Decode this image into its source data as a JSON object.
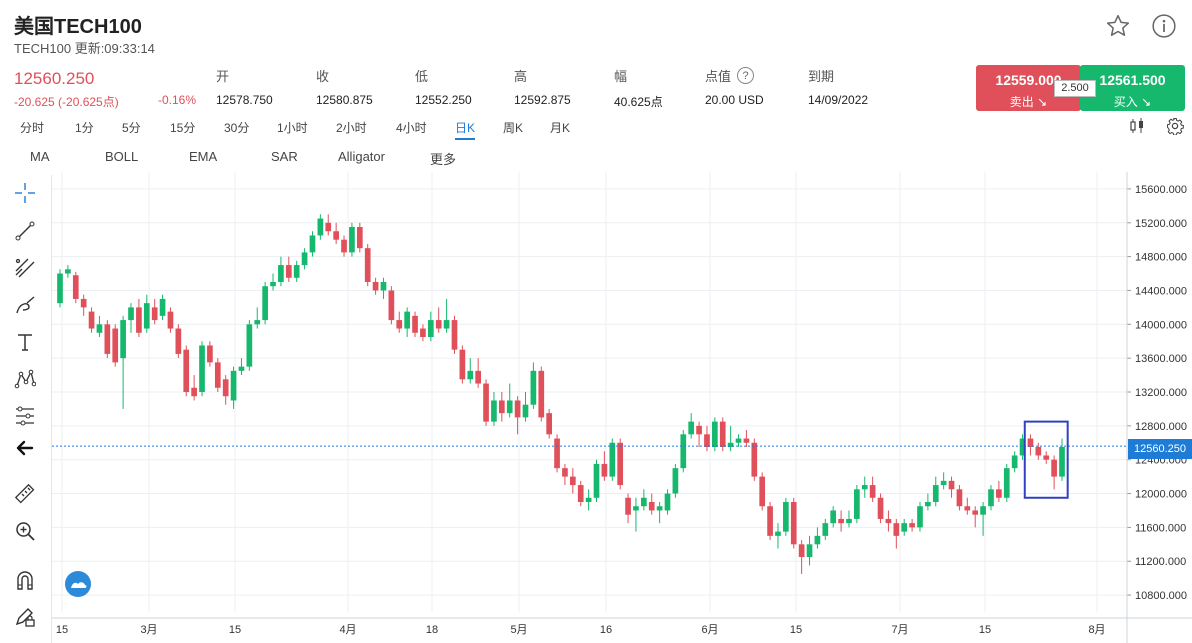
{
  "header": {
    "title": "美国TECH100",
    "subtitle": "TECH100 更新:09:33:14",
    "icons": [
      "star-icon",
      "info-icon"
    ]
  },
  "quote": {
    "price": "12560.250",
    "change": "-20.625 (-20.625点)",
    "change_pct": "-0.16%",
    "stats": [
      {
        "label": "开",
        "value": "12578.750"
      },
      {
        "label": "收",
        "value": "12580.875"
      },
      {
        "label": "低",
        "value": "12552.250"
      },
      {
        "label": "高",
        "value": "12592.875"
      },
      {
        "label": "幅",
        "value": "40.625点"
      },
      {
        "label": "点值",
        "value": "20.00 USD",
        "help": "?"
      },
      {
        "label": "到期",
        "value": "14/09/2022"
      }
    ],
    "sell": {
      "price": "12559.000",
      "label": "卖出"
    },
    "buy": {
      "price": "12561.500",
      "label": "买入"
    },
    "spread": "2.500",
    "colors": {
      "down": "#e0505a",
      "up": "#16b86e",
      "accent": "#1e7bd6"
    }
  },
  "timeframes": [
    "分时",
    "1分",
    "5分",
    "15分",
    "30分",
    "1小时",
    "2小时",
    "4小时",
    "日K",
    "周K",
    "月K"
  ],
  "active_timeframe": "日K",
  "indicators": [
    "MA",
    "BOLL",
    "EMA",
    "SAR",
    "Alligator",
    "更多"
  ],
  "tools": [
    "crosshair-icon",
    "trend-line-icon",
    "parallel-channel-icon",
    "brush-icon",
    "text-icon",
    "pattern-icon",
    "fib-icon",
    "back-arrow-icon",
    "ruler-icon",
    "zoom-icon",
    "magnet-icon",
    "lock-pencil-icon"
  ],
  "chart_data": {
    "type": "candlestick",
    "current_price": 12560.25,
    "current_price_label": "12560.250",
    "ylim": [
      10600,
      15800
    ],
    "y_ticks": [
      "15600.000",
      "15200.000",
      "14800.000",
      "14400.000",
      "14000.000",
      "13600.000",
      "13200.000",
      "12800.000",
      "12400.000",
      "12000.000",
      "11600.000",
      "11200.000",
      "10800.000"
    ],
    "x_labels": [
      "15",
      "3月",
      "15",
      "4月",
      "18",
      "5月",
      "16",
      "6月",
      "15",
      "7月",
      "15",
      "8月"
    ],
    "grid": true,
    "candles": [
      [
        14250,
        14600,
        14650,
        14200
      ],
      [
        14600,
        14650,
        14700,
        14550
      ],
      [
        14580,
        14300,
        14620,
        14250
      ],
      [
        14300,
        14200,
        14350,
        14100
      ],
      [
        14150,
        13950,
        14200,
        13900
      ],
      [
        13900,
        14000,
        14100,
        13850
      ],
      [
        14000,
        13650,
        14050,
        13600
      ],
      [
        13950,
        13550,
        14000,
        13500
      ],
      [
        13600,
        14050,
        14100,
        13000
      ],
      [
        14050,
        14200,
        14250,
        13900
      ],
      [
        14200,
        13900,
        14300,
        13850
      ],
      [
        13950,
        14250,
        14350,
        13900
      ],
      [
        14200,
        14050,
        14300,
        14000
      ],
      [
        14100,
        14300,
        14350,
        14050
      ],
      [
        14150,
        13950,
        14200,
        13900
      ],
      [
        13950,
        13650,
        14000,
        13600
      ],
      [
        13700,
        13200,
        13750,
        13150
      ],
      [
        13250,
        13150,
        13400,
        13100
      ],
      [
        13200,
        13750,
        13800,
        13150
      ],
      [
        13750,
        13550,
        13800,
        13500
      ],
      [
        13550,
        13250,
        13600,
        13200
      ],
      [
        13350,
        13150,
        13400,
        13050
      ],
      [
        13100,
        13450,
        13500,
        13000
      ],
      [
        13450,
        13500,
        13600,
        13400
      ],
      [
        13500,
        14000,
        14050,
        13450
      ],
      [
        14000,
        14050,
        14200,
        13950
      ],
      [
        14050,
        14450,
        14500,
        14000
      ],
      [
        14450,
        14500,
        14600,
        14400
      ],
      [
        14500,
        14700,
        14800,
        14450
      ],
      [
        14700,
        14550,
        14800,
        14500
      ],
      [
        14550,
        14700,
        14750,
        14500
      ],
      [
        14700,
        14850,
        14900,
        14650
      ],
      [
        14850,
        15050,
        15100,
        14800
      ],
      [
        15050,
        15250,
        15300,
        15000
      ],
      [
        15200,
        15100,
        15300,
        15050
      ],
      [
        15100,
        15000,
        15200,
        14950
      ],
      [
        15000,
        14850,
        15050,
        14800
      ],
      [
        14850,
        15150,
        15200,
        14800
      ],
      [
        15150,
        14900,
        15200,
        14850
      ],
      [
        14900,
        14500,
        14950,
        14450
      ],
      [
        14500,
        14400,
        14550,
        14350
      ],
      [
        14400,
        14500,
        14550,
        14300
      ],
      [
        14400,
        14050,
        14450,
        14000
      ],
      [
        14050,
        13950,
        14150,
        13900
      ],
      [
        13950,
        14150,
        14200,
        13850
      ],
      [
        14100,
        13900,
        14150,
        13850
      ],
      [
        13950,
        13850,
        14000,
        13800
      ],
      [
        13850,
        14050,
        14150,
        13800
      ],
      [
        14050,
        13950,
        14200,
        13900
      ],
      [
        13950,
        14050,
        14300,
        13900
      ],
      [
        14050,
        13700,
        14100,
        13650
      ],
      [
        13700,
        13350,
        13750,
        13300
      ],
      [
        13350,
        13450,
        13600,
        13300
      ],
      [
        13450,
        13300,
        13600,
        13250
      ],
      [
        13300,
        12850,
        13350,
        12800
      ],
      [
        12850,
        13100,
        13200,
        12800
      ],
      [
        13100,
        12950,
        13200,
        12850
      ],
      [
        12950,
        13100,
        13300,
        12900
      ],
      [
        13100,
        12900,
        13150,
        12700
      ],
      [
        12900,
        13050,
        13200,
        12850
      ],
      [
        13050,
        13450,
        13550,
        13000
      ],
      [
        13450,
        12900,
        13500,
        12850
      ],
      [
        12950,
        12700,
        13000,
        12650
      ],
      [
        12650,
        12300,
        12700,
        12250
      ],
      [
        12300,
        12200,
        12350,
        12100
      ],
      [
        12200,
        12100,
        12300,
        12000
      ],
      [
        12100,
        11900,
        12150,
        11850
      ],
      [
        11900,
        11950,
        12050,
        11800
      ],
      [
        11950,
        12350,
        12400,
        11900
      ],
      [
        12350,
        12200,
        12500,
        12150
      ],
      [
        12200,
        12600,
        12650,
        12150
      ],
      [
        12600,
        12100,
        12650,
        12050
      ],
      [
        11950,
        11750,
        12000,
        11650
      ],
      [
        11800,
        11850,
        11950,
        11550
      ],
      [
        11850,
        11950,
        12050,
        11800
      ],
      [
        11900,
        11800,
        12000,
        11750
      ],
      [
        11800,
        11850,
        11900,
        11650
      ],
      [
        11800,
        12000,
        12050,
        11750
      ],
      [
        12000,
        12300,
        12350,
        11950
      ],
      [
        12300,
        12700,
        12750,
        12250
      ],
      [
        12700,
        12850,
        12950,
        12650
      ],
      [
        12800,
        12700,
        12850,
        12550
      ],
      [
        12700,
        12550,
        12800,
        12500
      ],
      [
        12550,
        12850,
        12900,
        12500
      ],
      [
        12850,
        12550,
        12900,
        12500
      ],
      [
        12550,
        12600,
        12800,
        12500
      ],
      [
        12600,
        12650,
        12700,
        12550
      ],
      [
        12650,
        12600,
        12750,
        12550
      ],
      [
        12600,
        12200,
        12650,
        12150
      ],
      [
        12200,
        11850,
        12250,
        11800
      ],
      [
        11850,
        11500,
        11900,
        11450
      ],
      [
        11500,
        11550,
        11650,
        11350
      ],
      [
        11550,
        11900,
        11950,
        11500
      ],
      [
        11900,
        11400,
        11950,
        11350
      ],
      [
        11400,
        11250,
        11450,
        11050
      ],
      [
        11250,
        11400,
        11500,
        11150
      ],
      [
        11400,
        11500,
        11600,
        11350
      ],
      [
        11500,
        11650,
        11700,
        11450
      ],
      [
        11650,
        11800,
        11850,
        11600
      ],
      [
        11700,
        11650,
        11800,
        11550
      ],
      [
        11650,
        11700,
        11800,
        11600
      ],
      [
        11700,
        12050,
        12100,
        11650
      ],
      [
        12050,
        12100,
        12200,
        11950
      ],
      [
        12100,
        11950,
        12200,
        11900
      ],
      [
        11950,
        11700,
        12000,
        11650
      ],
      [
        11700,
        11650,
        11800,
        11550
      ],
      [
        11650,
        11500,
        11700,
        11350
      ],
      [
        11550,
        11650,
        11700,
        11500
      ],
      [
        11650,
        11600,
        11700,
        11550
      ],
      [
        11600,
        11850,
        11900,
        11550
      ],
      [
        11850,
        11900,
        12000,
        11800
      ],
      [
        11900,
        12100,
        12200,
        11850
      ],
      [
        12100,
        12150,
        12250,
        12050
      ],
      [
        12150,
        12050,
        12200,
        11950
      ],
      [
        12050,
        11850,
        12100,
        11800
      ],
      [
        11850,
        11800,
        11950,
        11750
      ],
      [
        11800,
        11750,
        11850,
        11600
      ],
      [
        11750,
        11850,
        11900,
        11500
      ],
      [
        11850,
        12050,
        12100,
        11800
      ],
      [
        12050,
        11950,
        12150,
        11900
      ],
      [
        11950,
        12300,
        12350,
        11900
      ],
      [
        12300,
        12450,
        12500,
        12250
      ],
      [
        12450,
        12650,
        12700,
        12400
      ],
      [
        12650,
        12550,
        12700,
        12450
      ],
      [
        12550,
        12450,
        12600,
        12400
      ],
      [
        12450,
        12400,
        12500,
        12350
      ],
      [
        12400,
        12200,
        12450,
        12050
      ],
      [
        12200,
        12550,
        12650,
        12150
      ]
    ]
  }
}
